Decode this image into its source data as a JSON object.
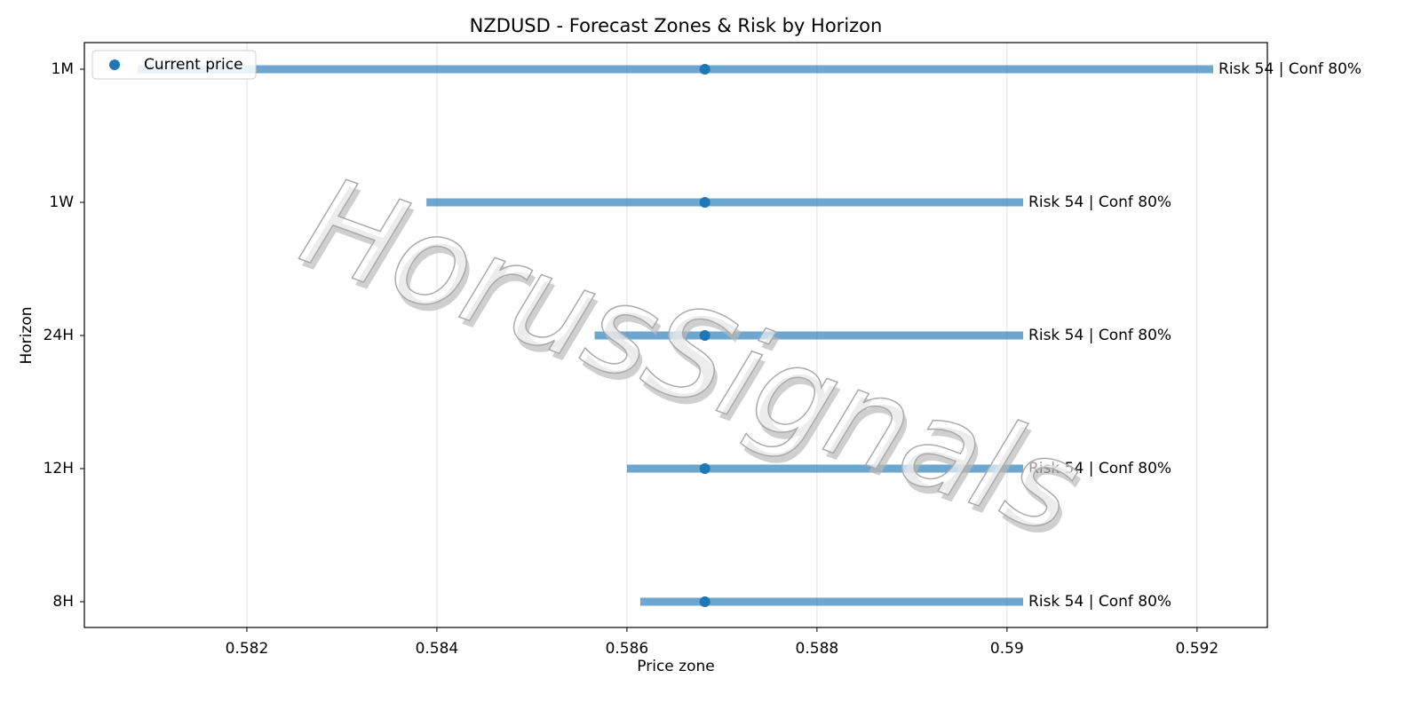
{
  "chart_data": {
    "type": "range",
    "title": "NZDUSD - Forecast Zones & Risk by Horizon",
    "xlabel": "Price zone",
    "ylabel": "Horizon",
    "watermark": "HorusSignals",
    "categories": [
      "8H",
      "12H",
      "24H",
      "1W",
      "1M"
    ],
    "zone_low": [
      0.58614,
      0.586,
      0.58566,
      0.58389,
      0.58085
    ],
    "zone_high": [
      0.59017,
      0.59017,
      0.59017,
      0.59017,
      0.59217
    ],
    "zone_color": "#1f77b4",
    "labels": [
      "Risk 54 | Conf 80%",
      "Risk 54 | Conf 80%",
      "Risk 54 | Conf 80%",
      "Risk 54 | Conf 80%",
      "Risk 54 | Conf 80%"
    ],
    "series": [
      {
        "name": "Current price",
        "color": "#1f77b4",
        "values": [
          0.58682,
          0.58682,
          0.58682,
          0.58682,
          0.58682
        ]
      }
    ],
    "xlim": [
      0.58029,
      0.59274
    ],
    "xticks": [
      0.582,
      0.584,
      0.586,
      0.588,
      0.59,
      0.592
    ],
    "grid": true,
    "legend": "upper left"
  }
}
